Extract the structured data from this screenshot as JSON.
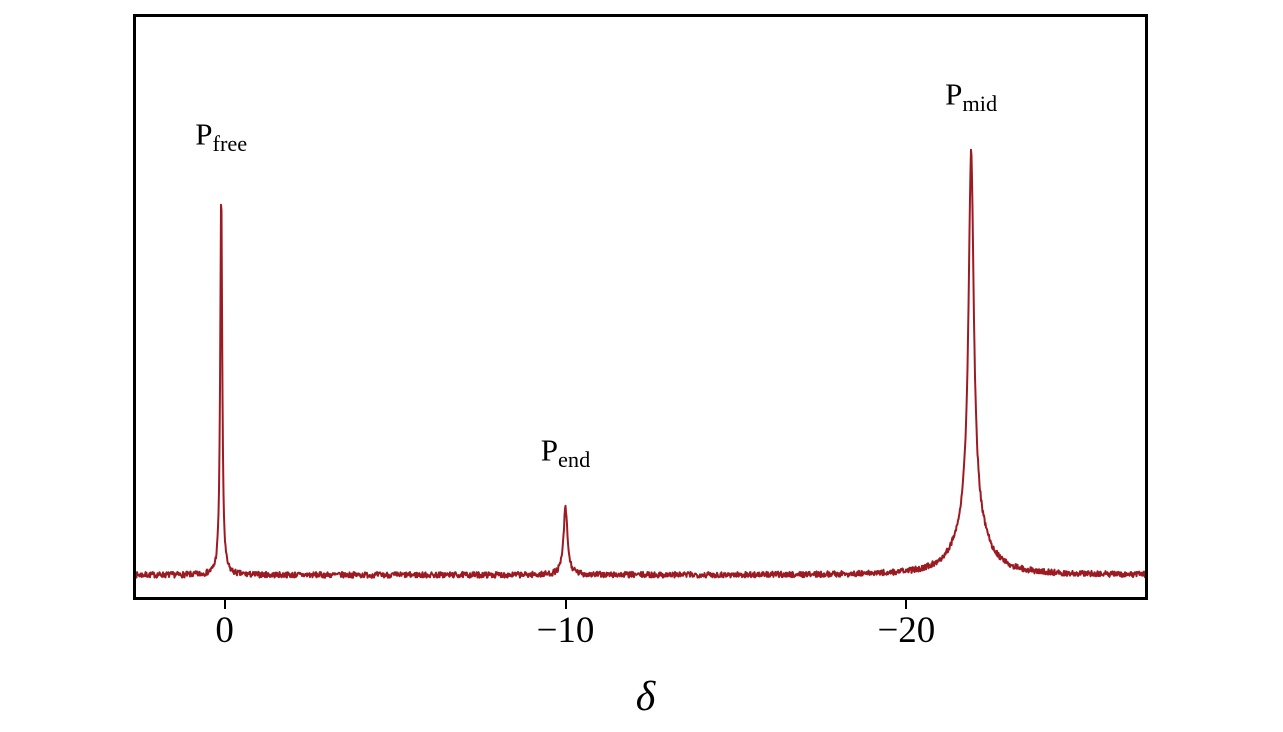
{
  "chart_data": {
    "type": "line",
    "title": "",
    "xlabel": "δ",
    "ylabel": "",
    "x_axis": {
      "range": [
        2.6,
        -27.0
      ],
      "reversed": true,
      "ticks": [
        {
          "value": 0,
          "label": "0"
        },
        {
          "value": -10,
          "label": "−10"
        },
        {
          "value": -20,
          "label": "−20"
        }
      ]
    },
    "y_axis": {
      "visible": false,
      "range": [
        0,
        1
      ]
    },
    "line_color": "#9c1b23",
    "background_color": "#ffffff",
    "frame_color": "#000000",
    "noise_amplitude": 0.005,
    "peaks": [
      {
        "label": "P",
        "sub": "free",
        "delta": 0.1,
        "height": 0.66,
        "gamma": 0.035
      },
      {
        "label": "P",
        "sub": "end",
        "delta": -10.0,
        "height": 0.115,
        "gamma": 0.07
      },
      {
        "label": "P",
        "sub": "mid",
        "delta": -21.9,
        "height": 0.62,
        "gamma": 0.09,
        "base_height": 0.11,
        "base_gamma": 0.45
      }
    ]
  }
}
